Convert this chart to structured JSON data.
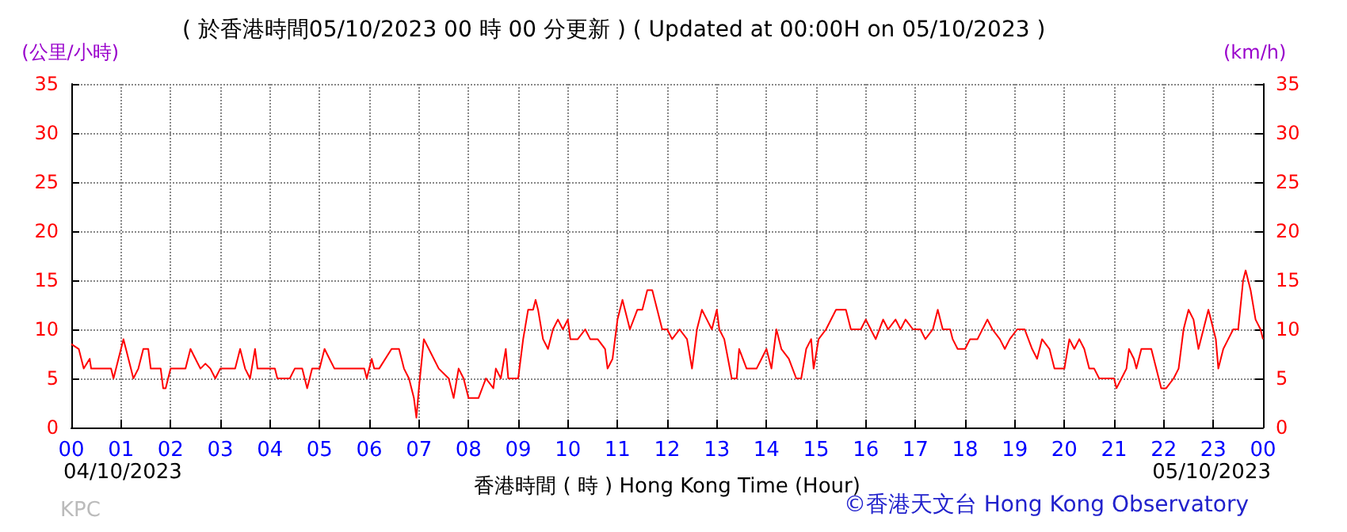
{
  "chart_data": {
    "type": "line",
    "title": "( 於香港時間05/10/2023 00 時 00 分更新 ) ( Updated at 00:00H on 05/10/2023 )",
    "xlabel": "香港時間 ( 時 ) Hong Kong Time (Hour)",
    "ylabel": "(公里/小時)",
    "y2label": "(km/h)",
    "annotations": [
      "04/10/2023",
      "05/10/2023",
      "KPC",
      "©香港天文台 Hong Kong Observatory"
    ],
    "series": [
      {
        "color": "#ff0000",
        "x": [
          0,
          0.15,
          0.25,
          0.37,
          0.4,
          0.8,
          0.85,
          0.95,
          1.05,
          1.1,
          1.2,
          1.25,
          1.35,
          1.45,
          1.55,
          1.6,
          1.8,
          1.85,
          1.9,
          2.0,
          2.3,
          2.4,
          2.5,
          2.6,
          2.7,
          2.8,
          2.9,
          3.0,
          3.3,
          3.4,
          3.5,
          3.6,
          3.7,
          3.75,
          4.1,
          4.15,
          4.4,
          4.5,
          4.65,
          4.75,
          4.85,
          5.0,
          5.1,
          5.2,
          5.3,
          5.9,
          5.95,
          6.05,
          6.1,
          6.2,
          6.45,
          6.6,
          6.7,
          6.8,
          6.9,
          6.95,
          7.0,
          7.1,
          7.2,
          7.4,
          7.6,
          7.7,
          7.8,
          7.9,
          8.0,
          8.2,
          8.35,
          8.5,
          8.55,
          8.65,
          8.75,
          8.8,
          9.0,
          9.1,
          9.2,
          9.3,
          9.35,
          9.4,
          9.5,
          9.6,
          9.7,
          9.8,
          9.9,
          10.0,
          10.05,
          10.2,
          10.35,
          10.45,
          10.6,
          10.75,
          10.8,
          10.9,
          11.0,
          11.1,
          11.25,
          11.4,
          11.5,
          11.6,
          11.7,
          11.8,
          11.9,
          12.0,
          12.1,
          12.25,
          12.4,
          12.5,
          12.6,
          12.7,
          12.8,
          12.9,
          13.0,
          13.05,
          13.15,
          13.3,
          13.4,
          13.45,
          13.6,
          13.8,
          13.9,
          14.0,
          14.1,
          14.2,
          14.3,
          14.45,
          14.6,
          14.7,
          14.8,
          14.9,
          14.95,
          15.05,
          15.2,
          15.4,
          15.6,
          15.7,
          15.9,
          16.0,
          16.1,
          16.2,
          16.35,
          16.45,
          16.6,
          16.7,
          16.8,
          16.95,
          17.1,
          17.2,
          17.35,
          17.45,
          17.55,
          17.7,
          17.75,
          17.85,
          18.0,
          18.1,
          18.25,
          18.45,
          18.55,
          18.7,
          18.8,
          18.9,
          19.05,
          19.2,
          19.35,
          19.45,
          19.55,
          19.7,
          19.8,
          20.0,
          20.1,
          20.2,
          20.3,
          20.4,
          20.5,
          20.6,
          20.7,
          21.0,
          21.05,
          21.15,
          21.25,
          21.3,
          21.4,
          21.45,
          21.55,
          21.75,
          21.85,
          21.95,
          22.05,
          22.2,
          22.3,
          22.4,
          22.5,
          22.6,
          22.7,
          22.8,
          22.9,
          22.95,
          23.05,
          23.1,
          23.2,
          23.3,
          23.4,
          23.5,
          23.6,
          23.65,
          23.75,
          23.85,
          23.95,
          24.0
        ],
        "values": [
          8.5,
          8,
          6,
          7,
          6,
          6,
          5,
          7,
          9,
          8,
          6,
          5,
          6,
          8,
          8,
          6,
          6,
          4,
          4,
          6,
          6,
          8,
          7,
          6,
          6.5,
          6,
          5,
          6,
          6,
          8,
          6,
          5,
          8,
          6,
          6,
          5,
          5,
          6,
          6,
          4,
          6,
          6,
          8,
          7,
          6,
          6,
          5,
          7,
          6,
          6,
          8,
          8,
          6,
          5,
          3,
          1,
          4,
          9,
          8,
          6,
          5,
          3,
          6,
          5,
          3,
          3,
          5,
          4,
          6,
          5,
          8,
          5,
          5,
          9,
          12,
          12,
          13,
          12,
          9,
          8,
          10,
          11,
          10,
          11,
          9,
          9,
          10,
          9,
          9,
          8,
          6,
          7,
          11,
          13,
          10,
          12,
          12,
          14,
          14,
          12,
          10,
          10,
          9,
          10,
          9,
          6,
          10,
          12,
          11,
          10,
          12,
          10,
          9,
          5,
          5,
          8,
          6,
          6,
          7,
          8,
          6,
          10,
          8,
          7,
          5,
          5,
          8,
          9,
          6,
          9,
          10,
          12,
          12,
          10,
          10,
          11,
          10,
          9,
          11,
          10,
          11,
          10,
          11,
          10,
          10,
          9,
          10,
          12,
          10,
          10,
          9,
          8,
          8,
          9,
          9,
          11,
          10,
          9,
          8,
          9,
          10,
          10,
          8,
          7,
          9,
          8,
          6,
          6,
          9,
          8,
          9,
          8,
          6,
          6,
          5,
          5,
          4,
          5,
          6,
          8,
          7,
          6,
          8,
          8,
          6,
          4,
          4,
          5,
          6,
          10,
          12,
          11,
          8,
          10,
          12,
          11,
          9,
          6,
          8,
          9,
          10,
          10,
          15,
          16,
          14,
          11,
          10,
          9
        ]
      }
    ],
    "xlim": [
      0,
      24
    ],
    "xticks": [
      {
        "value": 0,
        "label": "00"
      },
      {
        "value": 1,
        "label": "01"
      },
      {
        "value": 2,
        "label": "02"
      },
      {
        "value": 3,
        "label": "03"
      },
      {
        "value": 4,
        "label": "04"
      },
      {
        "value": 5,
        "label": "05"
      },
      {
        "value": 6,
        "label": "06"
      },
      {
        "value": 7,
        "label": "07"
      },
      {
        "value": 8,
        "label": "08"
      },
      {
        "value": 9,
        "label": "09"
      },
      {
        "value": 10,
        "label": "10"
      },
      {
        "value": 11,
        "label": "11"
      },
      {
        "value": 12,
        "label": "12"
      },
      {
        "value": 13,
        "label": "13"
      },
      {
        "value": 14,
        "label": "14"
      },
      {
        "value": 15,
        "label": "15"
      },
      {
        "value": 16,
        "label": "16"
      },
      {
        "value": 17,
        "label": "17"
      },
      {
        "value": 18,
        "label": "18"
      },
      {
        "value": 19,
        "label": "19"
      },
      {
        "value": 20,
        "label": "20"
      },
      {
        "value": 21,
        "label": "21"
      },
      {
        "value": 22,
        "label": "22"
      },
      {
        "value": 23,
        "label": "23"
      },
      {
        "value": 24,
        "label": "00"
      }
    ],
    "ylim": [
      0,
      35
    ],
    "yticks": [
      0,
      5,
      10,
      15,
      20,
      25,
      30,
      35
    ],
    "y2lim": [
      0,
      35
    ],
    "y2ticks": [
      0,
      5,
      10,
      15,
      20,
      25,
      30,
      35
    ],
    "grid": true,
    "marker": "none",
    "line_style": "solid"
  }
}
